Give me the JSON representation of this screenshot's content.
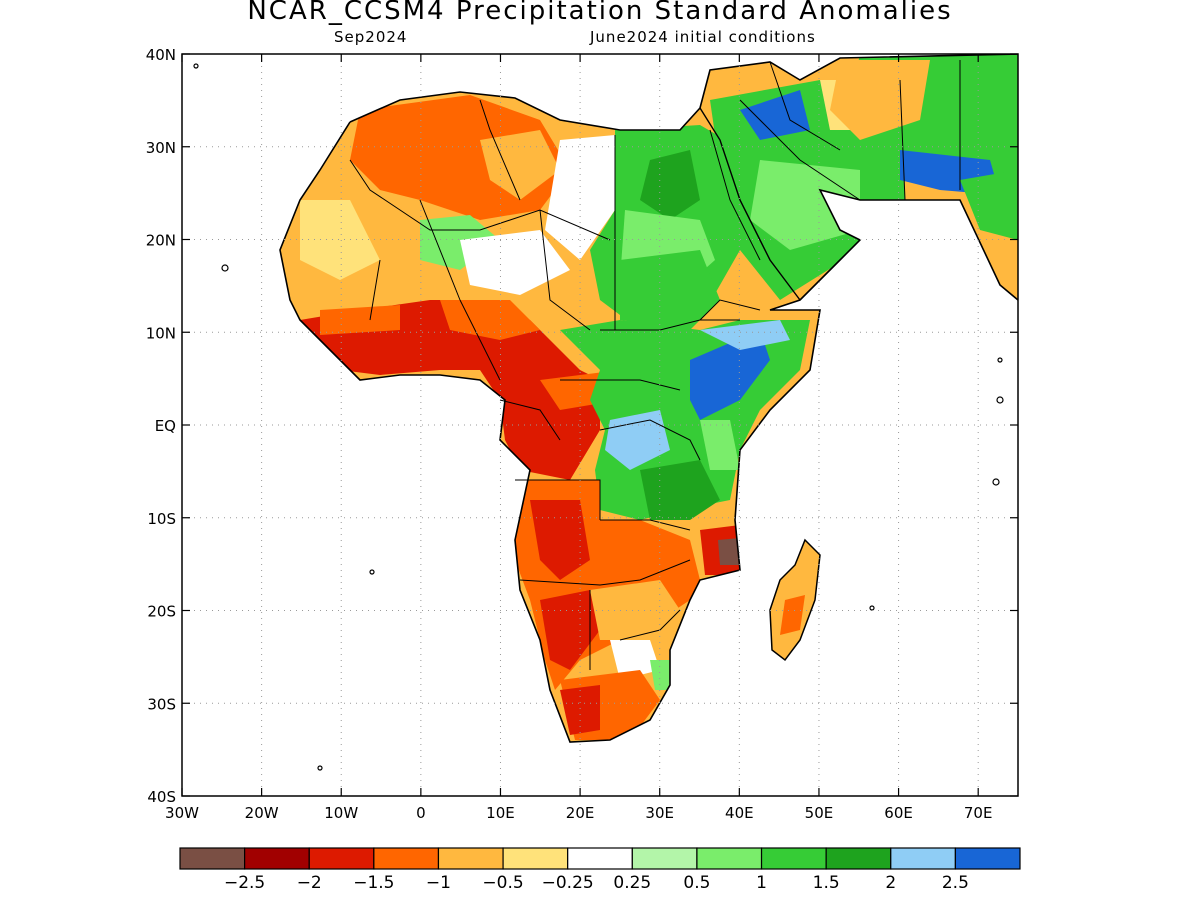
{
  "title": "NCAR_CCSM4 Precipitation Standard Anomalies",
  "subtitle_left": "Sep2024",
  "subtitle_right": "June2024 initial conditions",
  "map": {
    "region": "Africa",
    "lon_range": [
      -30,
      75
    ],
    "lat_range": [
      -40,
      40
    ],
    "x_ticks": [
      "30W",
      "20W",
      "10W",
      "0",
      "10E",
      "20E",
      "30E",
      "40E",
      "50E",
      "60E",
      "70E"
    ],
    "y_ticks": [
      "40N",
      "30N",
      "20N",
      "10N",
      "EQ",
      "10S",
      "20S",
      "30S",
      "40S"
    ],
    "grid": true
  },
  "colorbar": {
    "colors": [
      "#7a4f44",
      "#a10000",
      "#dd1a00",
      "#ff6600",
      "#ffb83f",
      "#ffe27a",
      "#ffffff",
      "#b3f5a9",
      "#7aed6b",
      "#36cc36",
      "#1ea31e",
      "#8fcdf5",
      "#1866d6"
    ],
    "labels": [
      "−2.5",
      "−2",
      "−1.5",
      "−1",
      "−0.5",
      "−0.25",
      "0.25",
      "0.5",
      "1",
      "1.5",
      "2",
      "2.5"
    ]
  }
}
